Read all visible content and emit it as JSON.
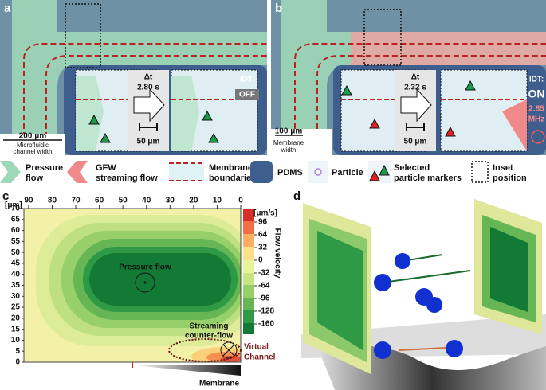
{
  "panel_a": {
    "letter": "a",
    "dt": "Δt",
    "time": "2.80 s",
    "idt": "IDT:",
    "state": "OFF",
    "inset_scale": "50 μm",
    "scale": "200 μm",
    "scale_caption": [
      "Microfluidic",
      "channel width"
    ]
  },
  "panel_b": {
    "letter": "b",
    "dt": "Δt",
    "time": "2.32 s",
    "idt": "IDT:",
    "state": "ON",
    "frequency": [
      "2.85",
      "MHz"
    ],
    "inset_scale": "50 μm",
    "scale": "100 μm",
    "scale_caption": [
      "Membrane",
      "width"
    ]
  },
  "legend": [
    {
      "label": [
        "Pressure",
        "flow"
      ]
    },
    {
      "label": [
        "GFW",
        "streaming flow"
      ]
    },
    {
      "label": [
        "Membrane",
        "boundaries"
      ]
    },
    {
      "label": [
        "PDMS"
      ]
    },
    {
      "label": [
        "Particle"
      ]
    },
    {
      "label": [
        "Selected",
        "particle markers"
      ]
    },
    {
      "label": [
        "Inset",
        "position"
      ]
    }
  ],
  "panel_c": {
    "letter": "c",
    "x_unit": "[μm]",
    "xlim": [
      92,
      0
    ],
    "xticks": [
      90,
      80,
      70,
      60,
      50,
      40,
      30,
      20,
      10,
      0
    ],
    "ylim": [
      0,
      70
    ],
    "yticks": [
      0,
      5,
      10,
      15,
      20,
      25,
      30,
      35,
      40,
      45,
      50,
      55,
      60,
      65,
      70
    ],
    "colorbar_unit": "[μm/s]",
    "colorbar_label": "Flow velocity",
    "colorbar_lim": [
      130,
      -186
    ],
    "colorbar_ticks": [
      96,
      64,
      32,
      0,
      -32,
      -64,
      -96,
      -128,
      -160
    ],
    "annotations": {
      "pressure_flow": "Pressure flow",
      "streaming": [
        "Streaming",
        "counter-flow"
      ],
      "virtual_channel": [
        "Virtual",
        "Channel"
      ],
      "membrane": "Membrane"
    }
  },
  "panel_d": {
    "letter": "d"
  }
}
